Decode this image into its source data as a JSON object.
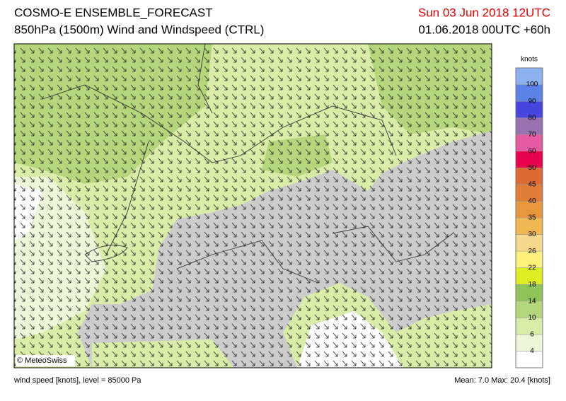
{
  "header": {
    "title": "COSMO-E ENSEMBLE_FORECAST",
    "subtitle": "850hPa (1500m) Wind and Windspeed (CTRL)",
    "valid_time": "Sun 03 Jun 2018 12UTC",
    "run_time": "01.06.2018 00UTC +60h"
  },
  "map": {
    "credit": "© MeteoSwiss"
  },
  "legend": {
    "unit": "knots",
    "ticks": [
      4,
      6,
      10,
      14,
      18,
      22,
      26,
      30,
      35,
      40,
      45,
      50,
      60,
      70,
      80,
      90,
      100
    ],
    "colors": [
      "#ffffff",
      "#eef6da",
      "#d9eca8",
      "#b5d77c",
      "#8fc45a",
      "#dfee22",
      "#fff27c",
      "#f6d88c",
      "#f0b752",
      "#e8973c",
      "#e07c36",
      "#dc6a32",
      "#e8004c",
      "#e55aa2",
      "#9a72b2",
      "#4646de",
      "#5c82e8",
      "#8cb2f2"
    ]
  },
  "footer": {
    "left": "wind speed [knots], level = 85000 Pa",
    "right": "Mean:  7.0 Max:  20.4 [knots]"
  }
}
